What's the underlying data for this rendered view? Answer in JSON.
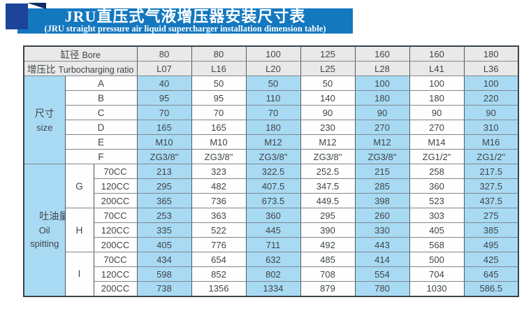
{
  "banner": {
    "title_zh": "JRU直压式气液增压器安装尺寸表",
    "title_en": "(JRU straight pressure air liquid supercharger installation dimension table)",
    "banner_color": "#1478bf",
    "square_color": "#1e4499",
    "fold_color": "#0e2a66"
  },
  "colors": {
    "header_bg": "#e9e9e9",
    "blue_cell": "#a9daf3",
    "white_cell": "#fefefe",
    "grid_vertical": "#4e585f",
    "grid_horizontal": "#7e888f",
    "text": "#3e4548"
  },
  "table": {
    "header_rows": [
      {
        "label_zh": "缸径",
        "label_en": "Bore",
        "values": [
          "80",
          "80",
          "100",
          "125",
          "160",
          "160",
          "180"
        ]
      },
      {
        "label_zh": "增压比",
        "label_en": "Turbocharging ratio",
        "values": [
          "L07",
          "L16",
          "L20",
          "L25",
          "L28",
          "L41",
          "L36"
        ]
      }
    ],
    "size_section": {
      "label_zh": "尺寸",
      "label_en": "size",
      "rows": [
        {
          "param": "A",
          "values": [
            "40",
            "50",
            "50",
            "50",
            "100",
            "100",
            "100"
          ]
        },
        {
          "param": "B",
          "values": [
            "95",
            "95",
            "110",
            "140",
            "180",
            "180",
            "220"
          ]
        },
        {
          "param": "C",
          "values": [
            "70",
            "70",
            "70",
            "90",
            "90",
            "90",
            "90"
          ]
        },
        {
          "param": "D",
          "values": [
            "165",
            "165",
            "180",
            "230",
            "270",
            "270",
            "310"
          ]
        },
        {
          "param": "E",
          "values": [
            "M10",
            "M10",
            "M12",
            "M12",
            "M12",
            "M14",
            "M16"
          ]
        },
        {
          "param": "F",
          "values": [
            "ZG3/8\"",
            "ZG3/8\"",
            "ZG3/8\"",
            "ZG3/8\"",
            "ZG3/8\"",
            "ZG1/2\"",
            "ZG1/2\""
          ]
        }
      ]
    },
    "oil_section": {
      "label_zh": "吐油量",
      "label_en_1": "Oil",
      "label_en_2": "spitting",
      "groups": [
        {
          "param": "G",
          "rows": [
            {
              "cc": "70CC",
              "values": [
                "213",
                "323",
                "322.5",
                "252.5",
                "215",
                "258",
                "217.5"
              ]
            },
            {
              "cc": "120CC",
              "values": [
                "295",
                "482",
                "407.5",
                "347.5",
                "285",
                "360",
                "327.5"
              ]
            },
            {
              "cc": "200CC",
              "values": [
                "365",
                "736",
                "673.5",
                "449.5",
                "398",
                "523",
                "437.5"
              ]
            }
          ]
        },
        {
          "param": "H",
          "rows": [
            {
              "cc": "70CC",
              "values": [
                "253",
                "363",
                "360",
                "295",
                "260",
                "303",
                "275"
              ]
            },
            {
              "cc": "120CC",
              "values": [
                "335",
                "522",
                "445",
                "390",
                "330",
                "405",
                "385"
              ]
            },
            {
              "cc": "200CC",
              "values": [
                "405",
                "776",
                "711",
                "492",
                "443",
                "568",
                "495"
              ]
            }
          ]
        },
        {
          "param": "I",
          "rows": [
            {
              "cc": "70CC",
              "values": [
                "434",
                "654",
                "632",
                "485",
                "414",
                "500",
                "425"
              ]
            },
            {
              "cc": "120CC",
              "values": [
                "598",
                "852",
                "802",
                "708",
                "554",
                "704",
                "645"
              ]
            },
            {
              "cc": "200CC",
              "values": [
                "738",
                "1356",
                "1334",
                "879",
                "780",
                "1030",
                "586.5"
              ]
            }
          ]
        }
      ]
    }
  }
}
